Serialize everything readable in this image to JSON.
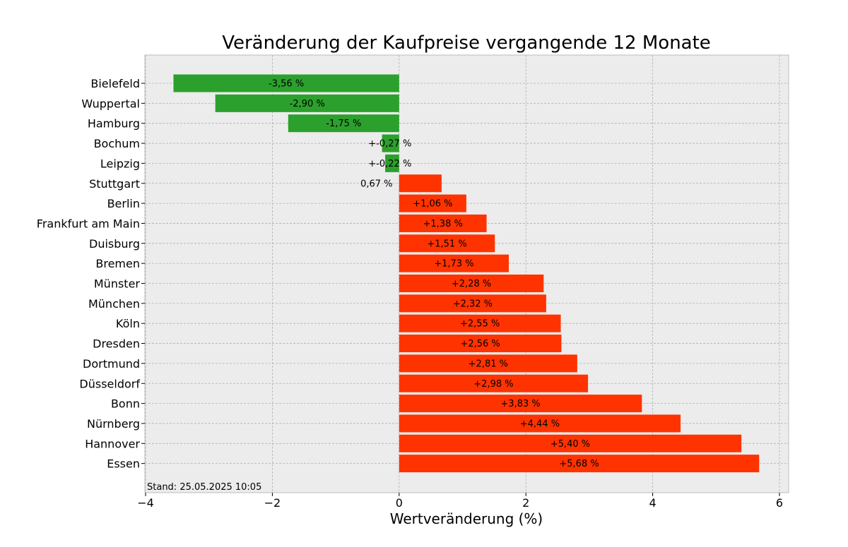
{
  "chart_data": {
    "type": "bar",
    "orientation": "horizontal",
    "title": "Veränderung der Kaufpreise vergangende 12 Monate",
    "xlabel": "Wertveränderung (%)",
    "ylabel": "",
    "xlim": [
      -4,
      6.15
    ],
    "xticks": [
      -4,
      -2,
      0,
      2,
      4,
      6
    ],
    "xtick_labels": [
      "−4",
      "−2",
      "0",
      "2",
      "4",
      "6"
    ],
    "grid": true,
    "colors": {
      "negative": "#2ca02c",
      "positive": "#ff3300",
      "plot_background": "#ececec"
    },
    "categories": [
      "Bielefeld",
      "Wuppertal",
      "Hamburg",
      "Bochum",
      "Leipzig",
      "Stuttgart",
      "Berlin",
      "Frankfurt am Main",
      "Duisburg",
      "Bremen",
      "Münster",
      "München",
      "Köln",
      "Dresden",
      "Dortmund",
      "Düsseldorf",
      "Bonn",
      "Nürnberg",
      "Hannover",
      "Essen"
    ],
    "values": [
      -3.56,
      -2.9,
      -1.75,
      -0.27,
      -0.22,
      0.67,
      1.06,
      1.38,
      1.51,
      1.73,
      2.28,
      2.32,
      2.55,
      2.56,
      2.81,
      2.98,
      3.83,
      4.44,
      5.4,
      5.68
    ],
    "data_labels": [
      "-3,56 %",
      "-2,90 %",
      "-1,75 %",
      "+-0,27 %",
      "+-0,22 %",
      "0,67 %",
      "+1,06 %",
      "+1,38 %",
      "+1,51 %",
      "+1,73 %",
      "+2,28 %",
      "+2,32 %",
      "+2,55 %",
      "+2,56 %",
      "+2,81 %",
      "+2,98 %",
      "+3,83 %",
      "+4,44 %",
      "+5,40 %",
      "+5,68 %"
    ],
    "annotation": "Stand: 25.05.2025 10:05"
  }
}
